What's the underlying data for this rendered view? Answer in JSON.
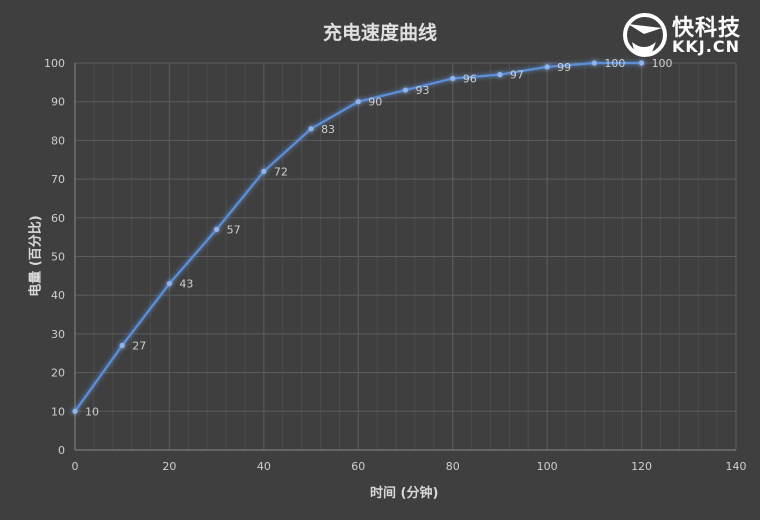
{
  "chart_data": {
    "type": "line",
    "title": "充电速度曲线",
    "xlabel": "时间 (分钟)",
    "ylabel": "电量 (百分比)",
    "x": [
      0,
      10,
      20,
      30,
      40,
      50,
      60,
      70,
      80,
      90,
      100,
      110,
      120
    ],
    "series": [
      {
        "name": "电量",
        "values": [
          10,
          27,
          43,
          57,
          72,
          83,
          90,
          93,
          96,
          97,
          99,
          100,
          100
        ]
      }
    ],
    "xlim": [
      0,
      140
    ],
    "ylim": [
      0,
      100
    ],
    "xticks": [
      0,
      20,
      40,
      60,
      80,
      100,
      120,
      140
    ],
    "yticks": [
      0,
      10,
      20,
      30,
      40,
      50,
      60,
      70,
      80,
      90,
      100
    ],
    "grid": true,
    "data_labels": true,
    "legend": "none",
    "line_color": "#5b8fd8"
  },
  "watermark": {
    "brand": "快科技",
    "domain": "KKJ.CN"
  }
}
